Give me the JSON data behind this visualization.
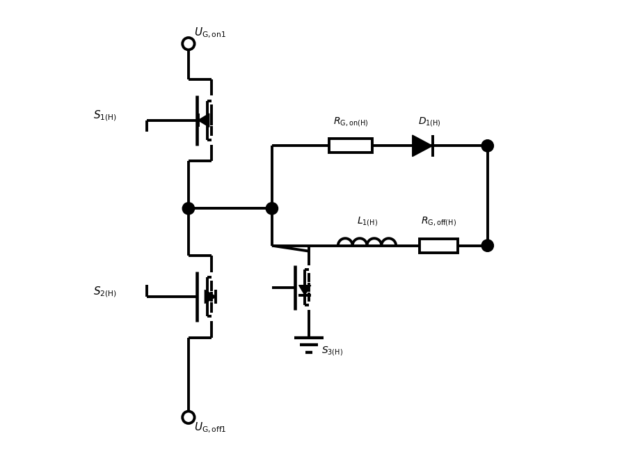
{
  "bg_color": "#ffffff",
  "line_color": "#000000",
  "lw": 2.8,
  "fig_width": 8.95,
  "fig_height": 6.72,
  "labels": {
    "UG_on1": "$U_{\\rm G,on1}$",
    "UG_off1": "$U_{\\rm G,off1}$",
    "S1H": "$S_{1({\\rm H})}$",
    "S2H": "$S_{2({\\rm H})}$",
    "S3H": "$S_{3({\\rm H})}$",
    "RG_onH": "$R_{{\\rm G,on(H)}}$",
    "D1H": "$D_{1({\\rm H})}$",
    "L1H": "$L_{1({\\rm H})}$",
    "RG_offH": "$R_{{\\rm G,off(H)}}$"
  }
}
